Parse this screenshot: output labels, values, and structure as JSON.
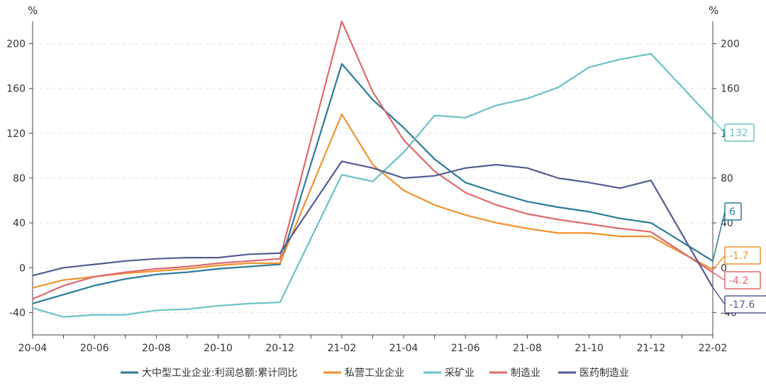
{
  "chart_data": {
    "type": "line",
    "title": "",
    "ylabel_left": "%",
    "ylabel_right": "%",
    "ylim": [
      -60,
      220
    ],
    "y_ticks": [
      -40,
      0,
      40,
      80,
      120,
      160,
      200
    ],
    "y_tick_labels": [
      "-40",
      "0",
      "40",
      "80",
      "120",
      "160",
      "200"
    ],
    "x": [
      "20-04",
      "20-05",
      "20-06",
      "20-07",
      "20-08",
      "20-09",
      "20-10",
      "20-11",
      "20-12",
      "21-01",
      "21-02",
      "21-03",
      "21-04",
      "21-05",
      "21-06",
      "21-07",
      "21-08",
      "21-09",
      "21-10",
      "21-11",
      "21-12",
      "22-01",
      "22-02"
    ],
    "x_tick_labels": [
      "20-04",
      "20-06",
      "20-08",
      "20-10",
      "20-12",
      "21-02",
      "21-04",
      "21-06",
      "21-08",
      "21-10",
      "21-12",
      "22-02"
    ],
    "grid": true,
    "legend_position": "bottom",
    "series": [
      {
        "name": "大中型工业企业:利润总额:累计同比",
        "color": "#2b7a9b",
        "values": [
          -32,
          -24,
          -16,
          -10,
          -6,
          -4,
          -1,
          1,
          3,
          null,
          182,
          150,
          125,
          97,
          76,
          67,
          59,
          54,
          50,
          44,
          40,
          null,
          6
        ],
        "end_label": "6"
      },
      {
        "name": "私营工业企业",
        "color": "#f0922e",
        "values": [
          -18,
          -11,
          -8,
          -5,
          -3,
          -1,
          2,
          4,
          4,
          null,
          137,
          92,
          69,
          56,
          47,
          40,
          35,
          31,
          31,
          28,
          28,
          null,
          -1.7
        ],
        "end_label": "-1.7"
      },
      {
        "name": "采矿业",
        "color": "#69c2c6",
        "values": [
          -36,
          -44,
          -42,
          -42,
          -38,
          -37,
          -34,
          -32,
          -31,
          null,
          83,
          77,
          103,
          136,
          134,
          145,
          151,
          161,
          179,
          186,
          191,
          null,
          132
        ],
        "end_label": "132"
      },
      {
        "name": "制造业",
        "color": "#e0686b",
        "values": [
          -28,
          -16,
          -8,
          -4,
          -1,
          1,
          4,
          6,
          8,
          null,
          220,
          157,
          114,
          86,
          67,
          56,
          48,
          43,
          39,
          35,
          32,
          null,
          -4.2
        ],
        "end_label": "-4.2"
      },
      {
        "name": "医药制造业",
        "color": "#535b92",
        "values": [
          -7,
          0,
          3,
          6,
          8,
          9,
          9,
          12,
          13,
          null,
          95,
          89,
          80,
          82,
          89,
          92,
          89,
          80,
          76,
          71,
          78,
          null,
          -17.6
        ],
        "end_label": "-17.6"
      }
    ]
  }
}
